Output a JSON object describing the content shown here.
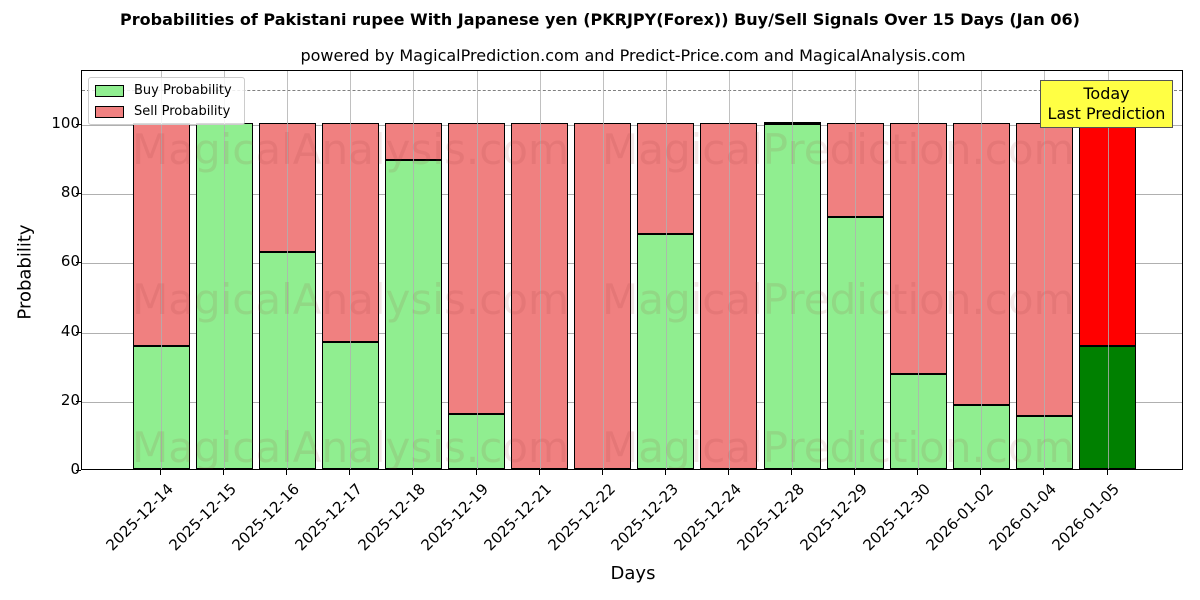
{
  "header": {
    "title": "Probabilities of Pakistani rupee With Japanese yen (PKRJPY(Forex)) Buy/Sell Signals Over 15 Days (Jan 06)",
    "subtitle": "powered by MagicalPrediction.com and Predict-Price.com and MagicalAnalysis.com"
  },
  "legend": {
    "buy_label": "Buy Probability",
    "sell_label": "Sell Probability"
  },
  "annotation": {
    "line1": "Today",
    "line2": "Last Prediction"
  },
  "watermarks": [
    "MagicalAnalysis.com",
    "MagicalPrediction.com"
  ],
  "axes": {
    "xlabel": "Days",
    "ylabel": "Probability",
    "yticks": [
      "0",
      "20",
      "40",
      "60",
      "80",
      "100"
    ]
  },
  "colors": {
    "buy": "#90ee90",
    "sell": "#f08080",
    "today_buy": "#008000",
    "today_sell": "#ff0000",
    "annotation_bg": "#ffff44"
  },
  "chart_data": {
    "type": "bar",
    "stacked": true,
    "title": "Probabilities of Pakistani rupee With Japanese yen (PKRJPY(Forex)) Buy/Sell Signals Over 15 Days (Jan 06)",
    "subtitle": "powered by MagicalPrediction.com and Predict-Price.com and MagicalAnalysis.com",
    "xlabel": "Days",
    "ylabel": "Probability",
    "ylim": [
      0,
      115.6
    ],
    "yticks": [
      0,
      20,
      40,
      60,
      80,
      100
    ],
    "grid": true,
    "legend_position": "upper left",
    "reference_line": {
      "y": 110,
      "style": "dashed",
      "color": "#808080"
    },
    "categories": [
      "2025-12-14",
      "2025-12-15",
      "2025-12-16",
      "2025-12-17",
      "2025-12-18",
      "2025-12-19",
      "2025-12-21",
      "2025-12-22",
      "2025-12-23",
      "2025-12-24",
      "2025-12-28",
      "2025-12-29",
      "2025-12-30",
      "2026-01-02",
      "2026-01-04",
      "2026-01-05"
    ],
    "series": [
      {
        "name": "Buy Probability",
        "values": [
          35.5,
          100,
          62.7,
          36.8,
          89.4,
          16.0,
          0,
          0,
          68.0,
          0,
          99.8,
          72.9,
          27.4,
          18.6,
          15.4,
          35.5
        ]
      },
      {
        "name": "Sell Probability",
        "values": [
          64.5,
          0,
          37.3,
          63.2,
          10.6,
          84.0,
          100,
          100,
          32.0,
          100,
          0.2,
          27.1,
          72.6,
          81.4,
          84.6,
          64.5
        ]
      }
    ],
    "highlight": {
      "index": 15,
      "label": "Today\nLast Prediction",
      "buy_color": "#008000",
      "sell_color": "#ff0000"
    }
  }
}
